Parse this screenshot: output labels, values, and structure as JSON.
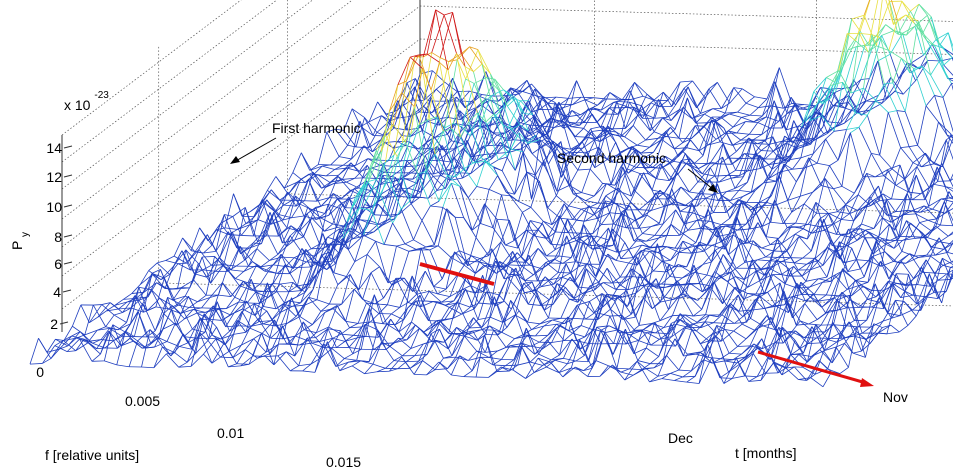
{
  "chart_data": {
    "type": "surface",
    "style": "3-D wireframe mesh, colored by height (blue low, cyan/yellow mid, red high)",
    "xlabel": "f [relative units]",
    "ylabel": "t [months]",
    "zlabel": "P",
    "zlabel_subscript": "y",
    "zscale_label": "x 10",
    "zscale_exponent": "-23",
    "x_ticks": [
      0.005,
      0.01,
      0.015
    ],
    "x_tick_labels": [
      "0.005",
      "0.01",
      "0.015"
    ],
    "y_tick_labels": [
      "Dec",
      "Nov"
    ],
    "z_ticks": [
      0,
      2,
      4,
      6,
      8,
      10,
      12,
      14
    ],
    "z_tick_labels": [
      "0",
      "2",
      "4",
      "6",
      "8",
      "10",
      "12",
      "14"
    ],
    "zlim": [
      0,
      14
    ],
    "grid": true,
    "peaks": [
      {
        "name": "First harmonic",
        "f": 0.0075,
        "P": 13.3
      },
      {
        "name": "Second harmonic",
        "f": 0.0165,
        "P": 10.5
      }
    ],
    "annotations": [
      {
        "text": "First harmonic",
        "target_peak": 0
      },
      {
        "text": "Second harmonic",
        "target_peak": 1
      }
    ],
    "colors": {
      "low": "#1f3fbf",
      "mid": "#2fd0d0",
      "high": "#d01818",
      "marker": "#e01010"
    }
  }
}
